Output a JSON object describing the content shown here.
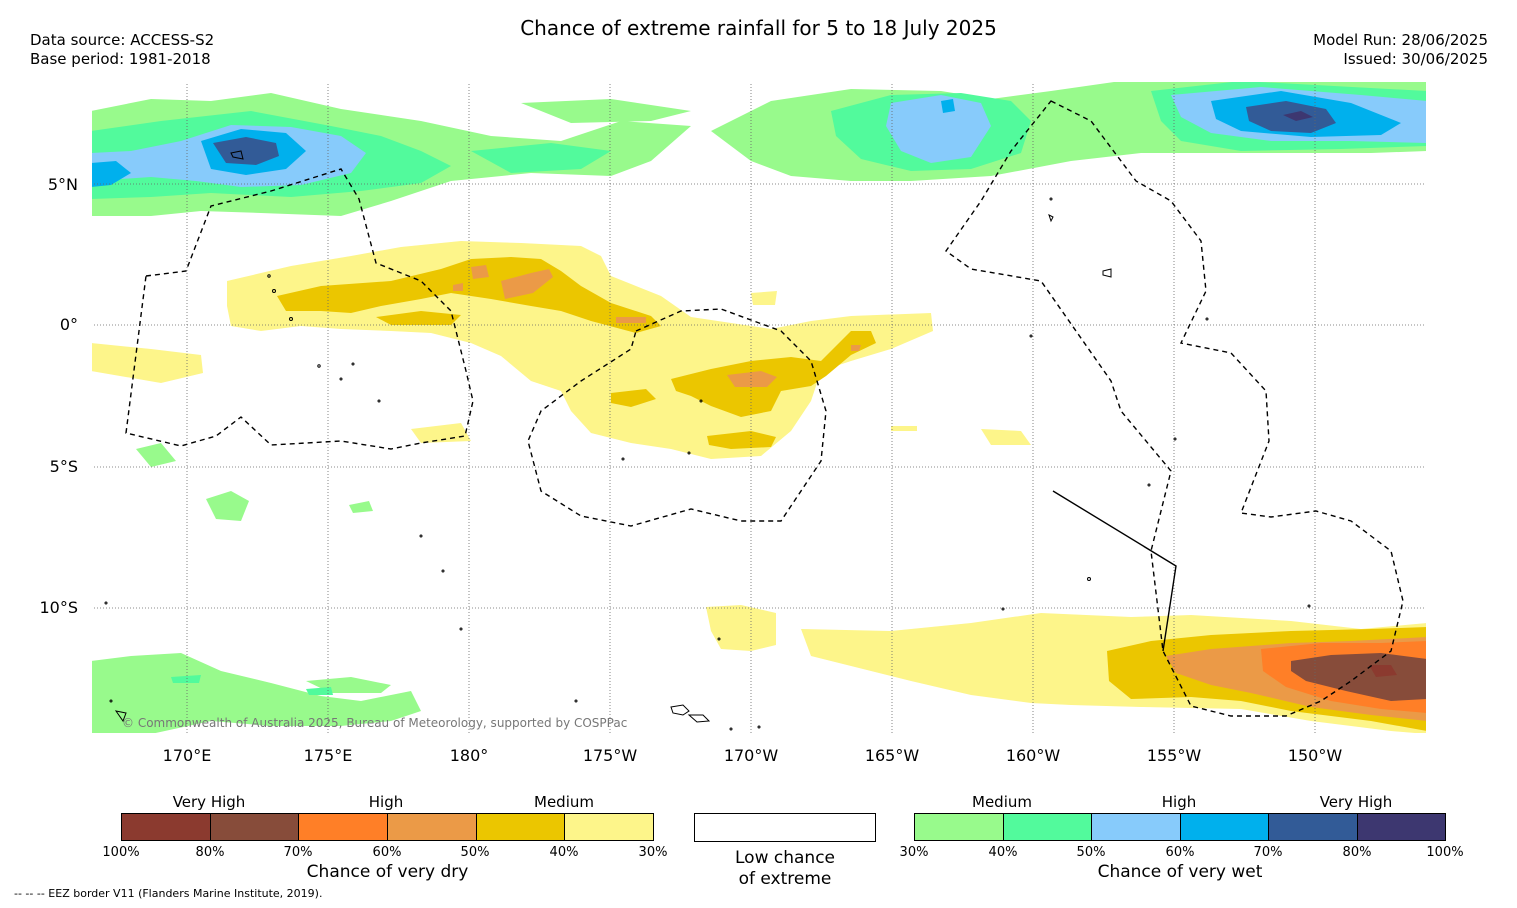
{
  "title": "Chance of extreme rainfall for 5 to 18 July 2025",
  "data_source": "Data source: ACCESS-S2",
  "base_period": "Base period: 1981-2018",
  "model_run": "Model Run: 28/06/2025",
  "issued": "Issued: 30/06/2025",
  "map": {
    "lat_labels": [
      "5°N",
      "0°",
      "5°S",
      "10°S"
    ],
    "lon_labels": [
      "170°E",
      "175°E",
      "180°",
      "175°W",
      "170°W",
      "165°W",
      "160°W",
      "155°W",
      "150°W"
    ],
    "copyright": "© Commonwealth of Australia 2025, Bureau of Meteorology, supported by COSPPac"
  },
  "legend_dry": {
    "categories": [
      "Very High",
      "High",
      "Medium"
    ],
    "ticks": [
      "100%",
      "80%",
      "70%",
      "60%",
      "50%",
      "40%",
      "30%"
    ],
    "colors": [
      "#8b3a2f",
      "#874c3a",
      "#ff7f27",
      "#eb9a47",
      "#ebc600",
      "#fdf58a"
    ],
    "label": "Chance of very dry"
  },
  "legend_low": {
    "label_line1": "Low chance",
    "label_line2": "of extreme"
  },
  "legend_wet": {
    "categories": [
      "Medium",
      "High",
      "Very High"
    ],
    "ticks": [
      "30%",
      "40%",
      "50%",
      "60%",
      "70%",
      "80%",
      "100%"
    ],
    "colors": [
      "#98fa8c",
      "#52fa9c",
      "#87cbfb",
      "#00b0ed",
      "#325b97",
      "#3d3770"
    ],
    "label": "Chance of very wet"
  },
  "eez_note": "-- -- -- EEZ border V11 (Flanders Marine Institute, 2019)."
}
